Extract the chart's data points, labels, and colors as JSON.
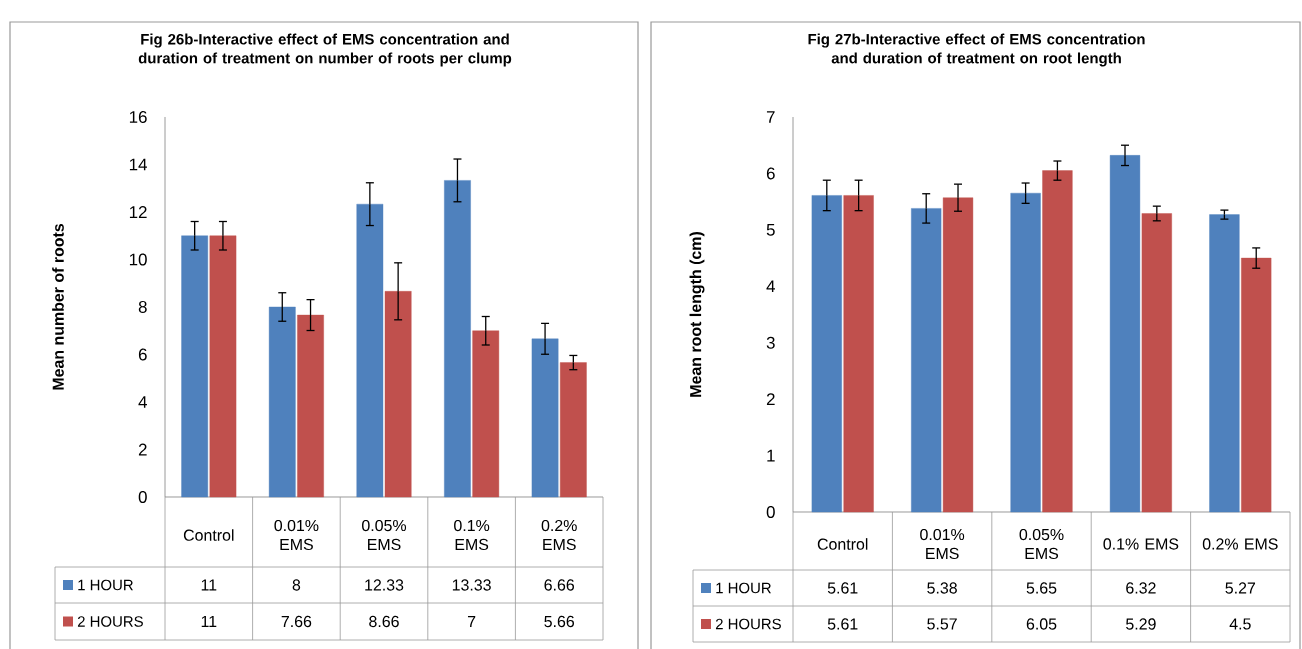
{
  "chart_data": [
    {
      "type": "bar",
      "title": "Fig 26b-Interactive effect of EMS concentration and duration of treatment on number of roots per clump",
      "ylabel": "Mean number of roots",
      "categories": [
        "Control",
        "0.01% EMS",
        "0.05% EMS",
        "0.1% EMS",
        "0.2% EMS"
      ],
      "series": [
        {
          "name": "1 HOUR",
          "color": "#4f81bd",
          "values": [
            11,
            8,
            12.33,
            13.33,
            6.66
          ],
          "errors": [
            0.6,
            0.6,
            0.9,
            0.9,
            0.65
          ],
          "value_labels": [
            "11",
            "8",
            "12.33",
            "13.33",
            "6.66"
          ]
        },
        {
          "name": "2 HOURS",
          "color": "#c0504d",
          "values": [
            11,
            7.66,
            8.66,
            7,
            5.66
          ],
          "errors": [
            0.6,
            0.65,
            1.2,
            0.6,
            0.3
          ],
          "value_labels": [
            "11",
            "7.66",
            "8.66",
            "7",
            "5.66"
          ]
        }
      ],
      "ylim": [
        0,
        16
      ],
      "yticks": [
        0,
        2,
        4,
        6,
        8,
        10,
        12,
        14,
        16
      ],
      "data_labels": true,
      "legend": "bottom left",
      "grid": false
    },
    {
      "type": "bar",
      "title": "Fig 27b-Interactive effect of EMS concentration and duration of treatment on root length",
      "ylabel": "Mean root length (cm)",
      "categories": [
        "Control",
        "0.01% EMS",
        "0.05% EMS",
        "0.1% EMS",
        "0.2% EMS"
      ],
      "series": [
        {
          "name": "1 HOUR",
          "color": "#4f81bd",
          "values": [
            5.61,
            5.38,
            5.65,
            6.32,
            5.27
          ],
          "errors": [
            0.27,
            0.26,
            0.18,
            0.18,
            0.08
          ],
          "value_labels": [
            "5.61",
            "5.38",
            "5.65",
            "6.32",
            "5.27"
          ]
        },
        {
          "name": "2 HOURS",
          "color": "#c0504d",
          "values": [
            5.61,
            5.57,
            6.05,
            5.29,
            4.5
          ],
          "errors": [
            0.27,
            0.24,
            0.17,
            0.13,
            0.18
          ],
          "value_labels": [
            "5.61",
            "5.57",
            "6.05",
            "5.29",
            "4.5"
          ]
        }
      ],
      "ylim": [
        0,
        7
      ],
      "yticks": [
        0,
        1,
        2,
        3,
        4,
        5,
        6,
        7
      ],
      "data_labels": true,
      "legend": "bottom left",
      "grid": false
    }
  ]
}
